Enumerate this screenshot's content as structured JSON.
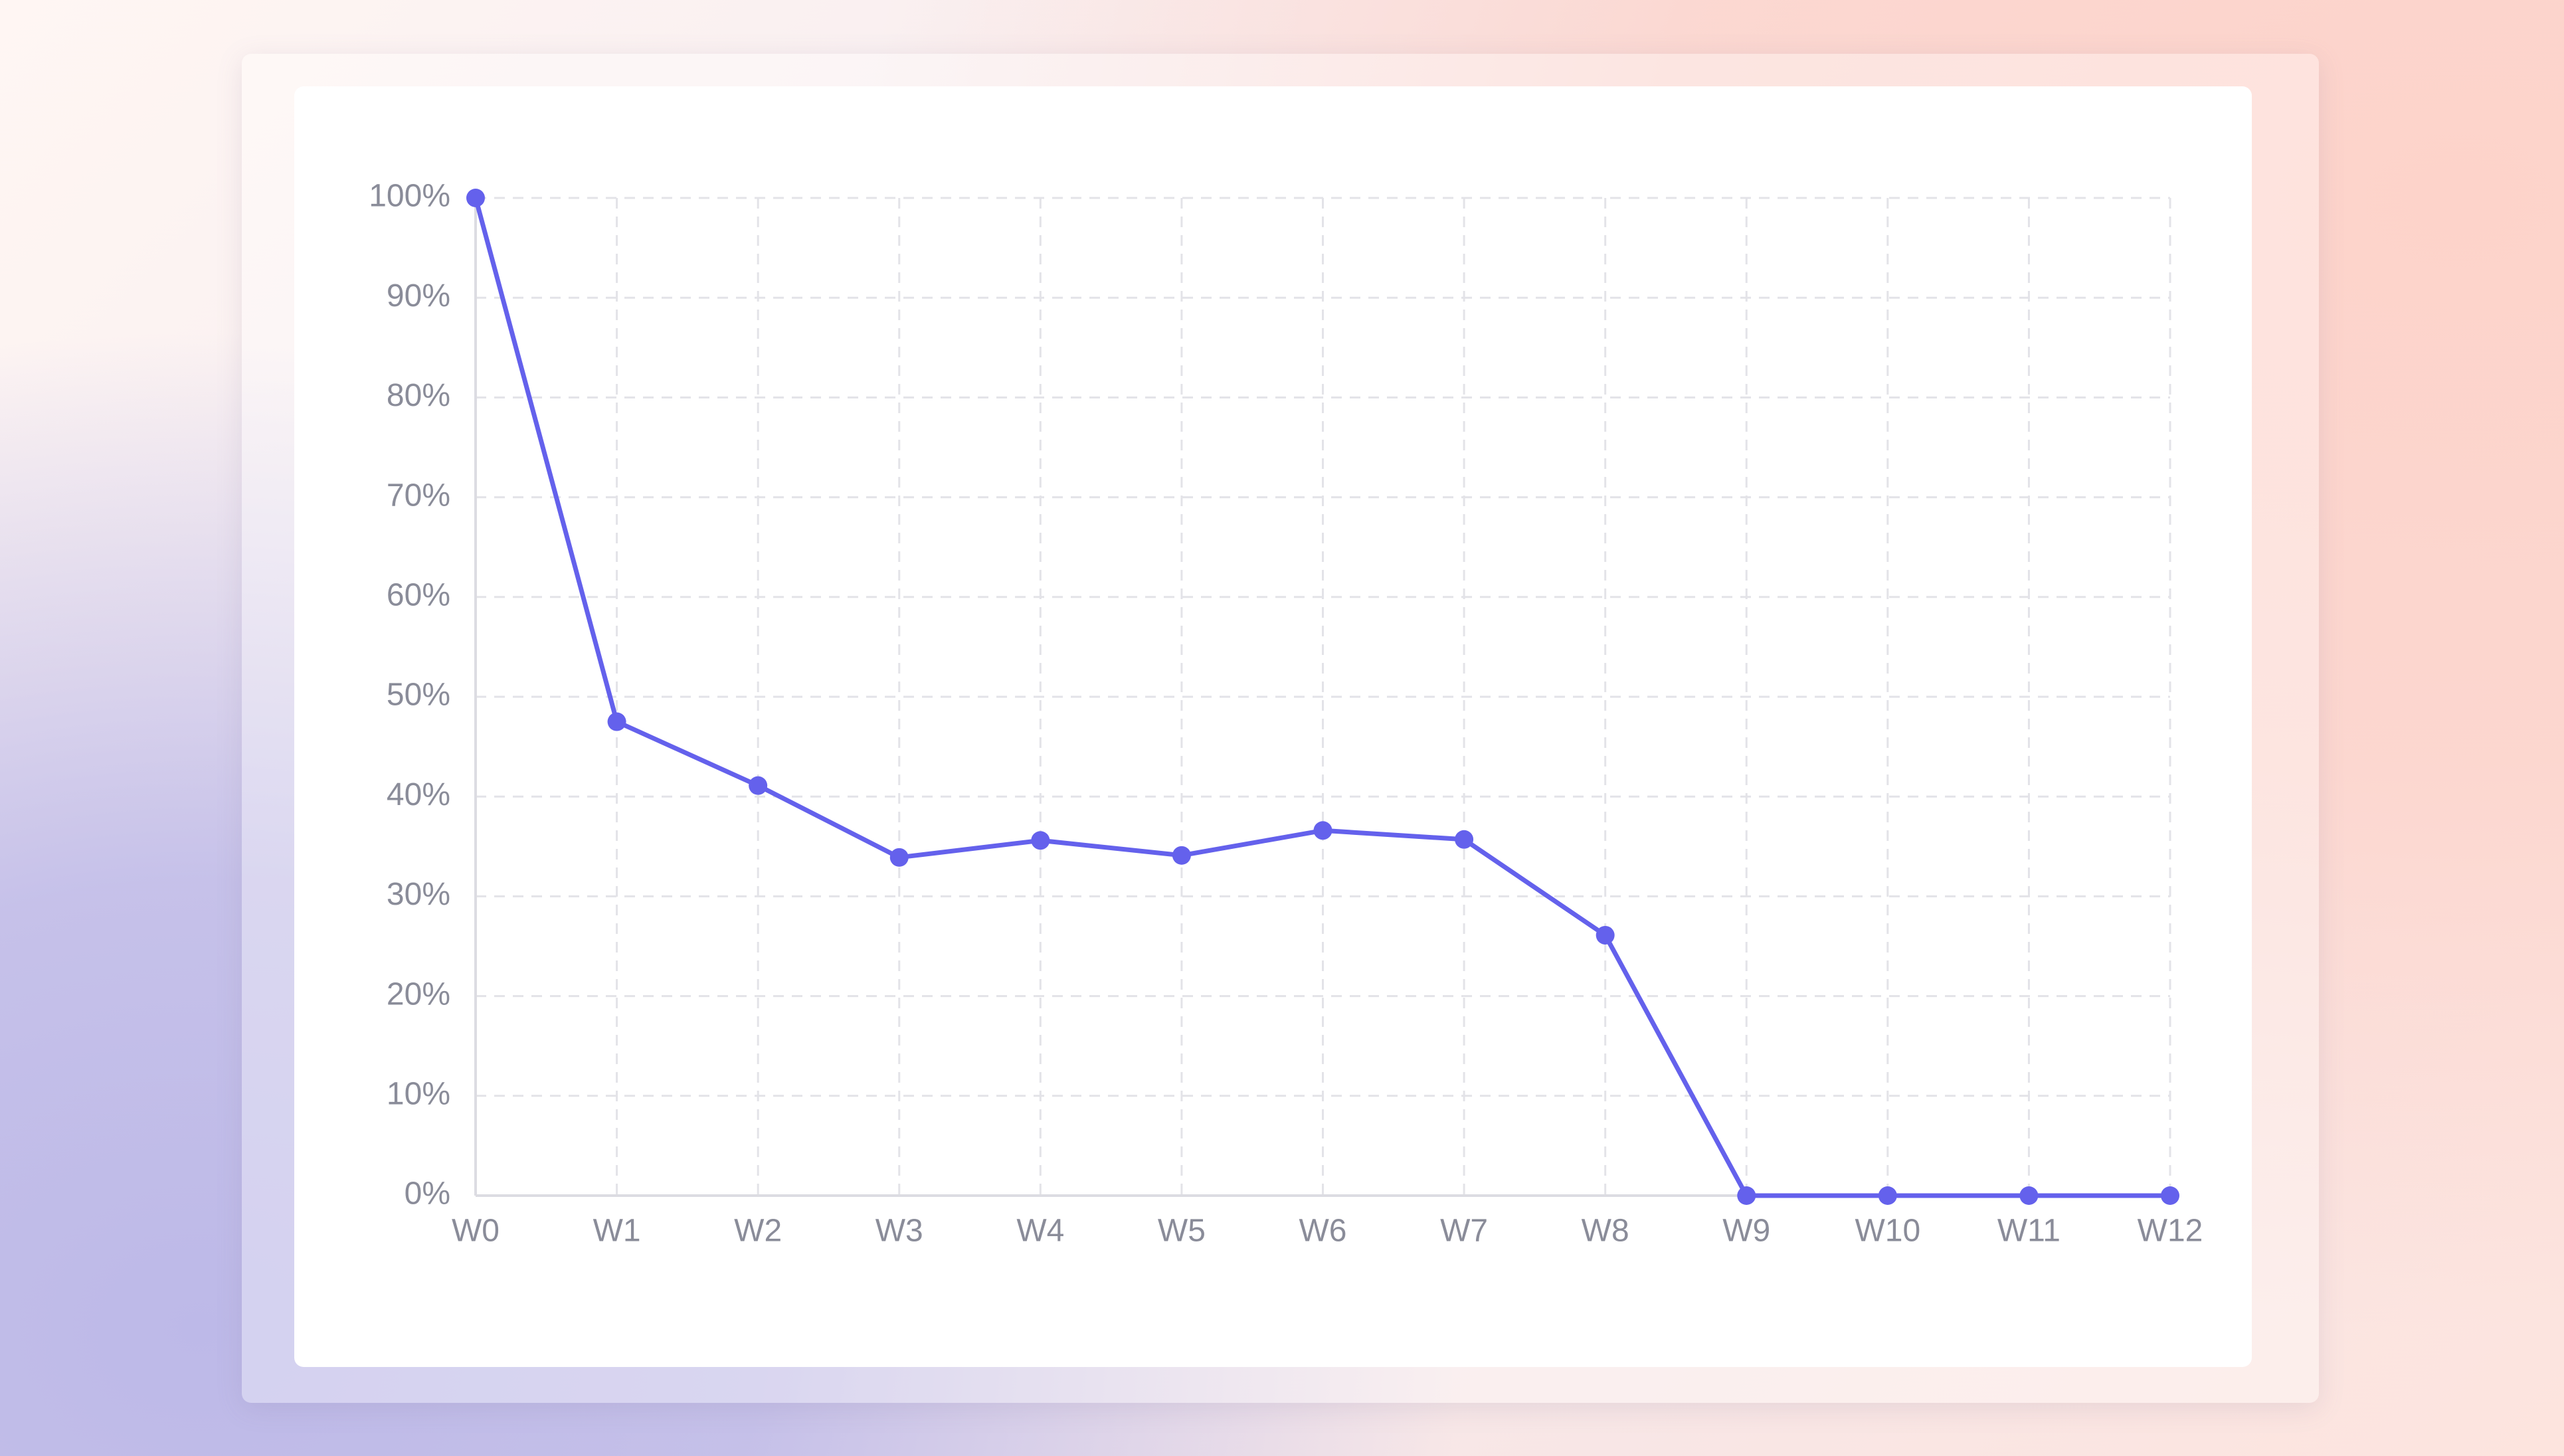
{
  "chart_data": {
    "type": "line",
    "categories": [
      "W0",
      "W1",
      "W2",
      "W3",
      "W4",
      "W5",
      "W6",
      "W7",
      "W8",
      "W9",
      "W10",
      "W11",
      "W12"
    ],
    "values": [
      100,
      47.5,
      41.1,
      33.9,
      35.6,
      34.1,
      36.6,
      35.7,
      26.1,
      0,
      0,
      0,
      0
    ],
    "color": "#6461ec",
    "ylim": [
      0,
      100
    ],
    "yticks": [
      {
        "value": 0,
        "label": "0%"
      },
      {
        "value": 10,
        "label": "10%"
      },
      {
        "value": 20,
        "label": "20%"
      },
      {
        "value": 30,
        "label": "30%"
      },
      {
        "value": 40,
        "label": "40%"
      },
      {
        "value": 50,
        "label": "50%"
      },
      {
        "value": 60,
        "label": "60%"
      },
      {
        "value": 70,
        "label": "70%"
      },
      {
        "value": 80,
        "label": "80%"
      },
      {
        "value": 90,
        "label": "90%"
      },
      {
        "value": 100,
        "label": "100%"
      }
    ],
    "grid": true
  }
}
